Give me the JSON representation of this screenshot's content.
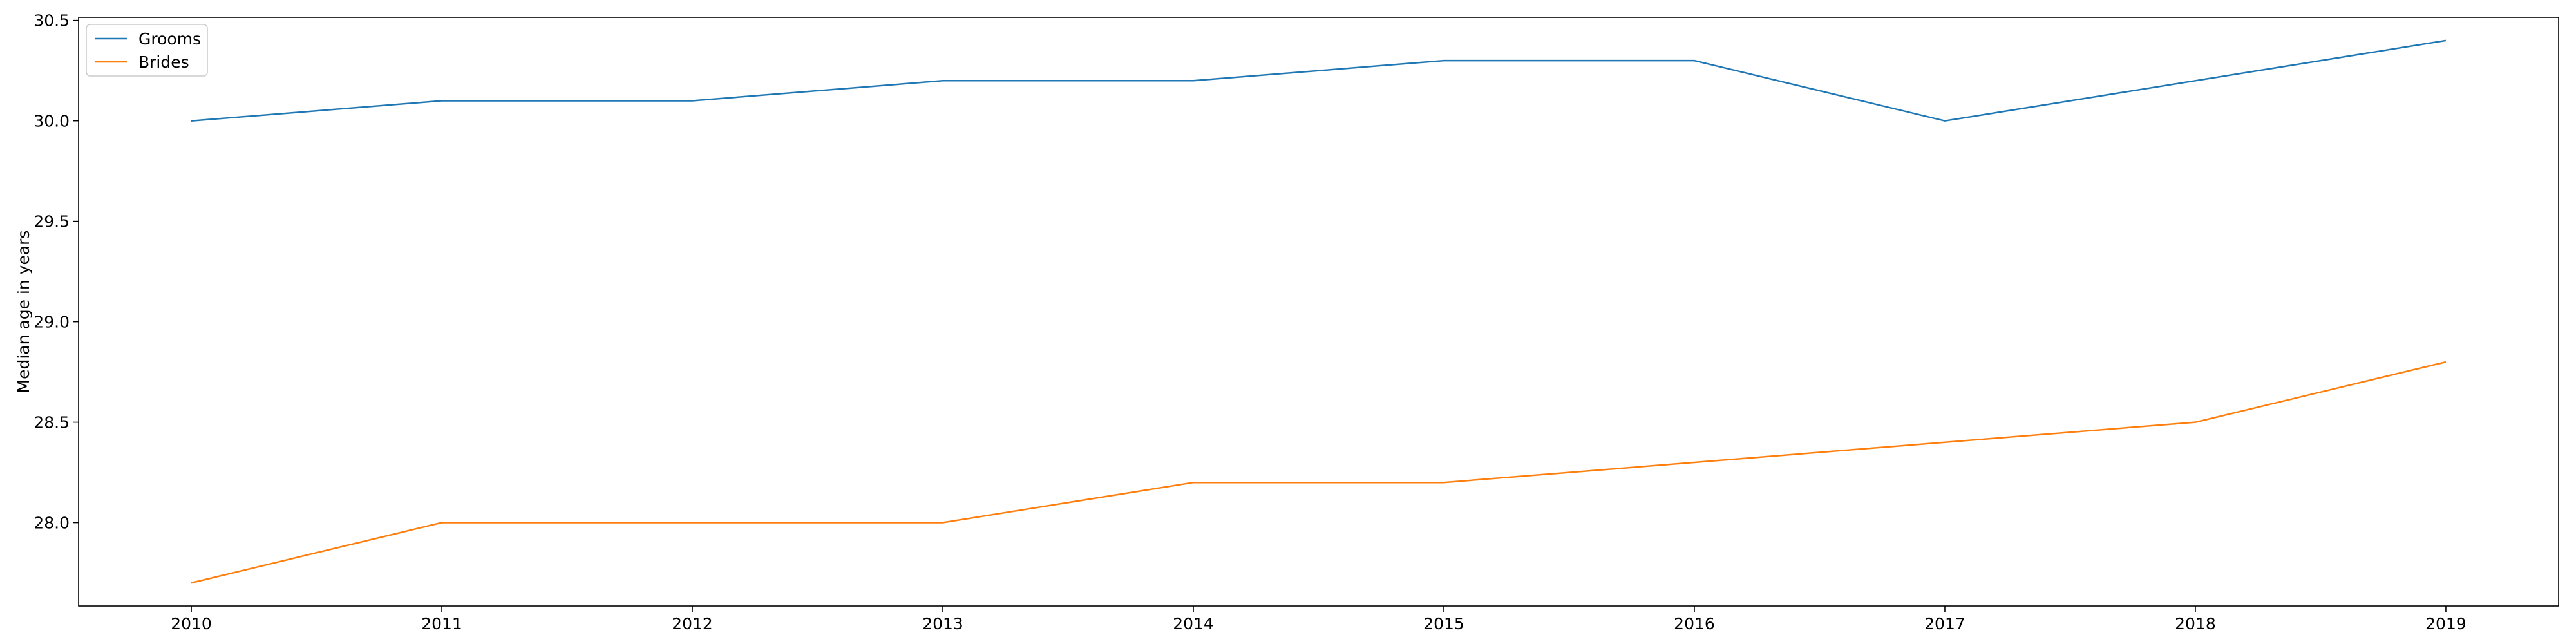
{
  "chart_data": {
    "type": "line",
    "x": [
      2010,
      2011,
      2012,
      2013,
      2014,
      2015,
      2016,
      2017,
      2018,
      2019
    ],
    "series": [
      {
        "name": "Grooms",
        "color": "#1f77b4",
        "values": [
          30.0,
          30.1,
          30.1,
          30.2,
          30.2,
          30.3,
          30.3,
          30.0,
          30.2,
          30.4
        ]
      },
      {
        "name": "Brides",
        "color": "#ff7f0e",
        "values": [
          27.7,
          28.0,
          28.0,
          28.0,
          28.2,
          28.2,
          28.3,
          28.4,
          28.5,
          28.8
        ]
      }
    ],
    "title": "",
    "xlabel": "",
    "ylabel": "Median age in years",
    "xlim": [
      2009.55,
      2019.45
    ],
    "ylim": [
      27.585,
      30.515
    ],
    "xticks": [
      "2010",
      "2011",
      "2012",
      "2013",
      "2014",
      "2015",
      "2016",
      "2017",
      "2018",
      "2019"
    ],
    "yticks": [
      "28.0",
      "28.5",
      "29.0",
      "29.5",
      "30.0",
      "30.5"
    ],
    "grid": false,
    "legend_position": "top-left"
  }
}
